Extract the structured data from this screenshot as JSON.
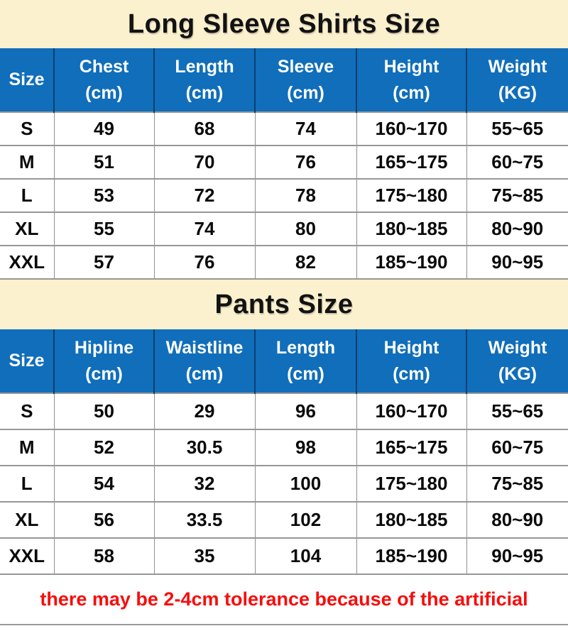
{
  "colors": {
    "banner_bg": "#fcf1cf",
    "header_bg": "#106ebb",
    "header_divider": "#0d4070",
    "cell_border": "#979797",
    "note_red": "#f70d0d",
    "text_black": "#0a0a0a"
  },
  "footer": {
    "note": "there may be 2-4cm tolerance because of the artificial"
  },
  "chart_data": [
    {
      "type": "table",
      "title": "Long Sleeve Shirts Size",
      "columns": [
        {
          "label": "Size",
          "unit": ""
        },
        {
          "label": "Chest",
          "unit": "(cm)"
        },
        {
          "label": "Length",
          "unit": "(cm)"
        },
        {
          "label": "Sleeve",
          "unit": "(cm)"
        },
        {
          "label": "Height",
          "unit": "(cm)"
        },
        {
          "label": "Weight",
          "unit": "(KG)"
        }
      ],
      "rows": [
        [
          "S",
          "49",
          "68",
          "74",
          "160~170",
          "55~65"
        ],
        [
          "M",
          "51",
          "70",
          "76",
          "165~175",
          "60~75"
        ],
        [
          "L",
          "53",
          "72",
          "78",
          "175~180",
          "75~85"
        ],
        [
          "XL",
          "55",
          "74",
          "80",
          "180~185",
          "80~90"
        ],
        [
          "XXL",
          "57",
          "76",
          "82",
          "185~190",
          "90~95"
        ]
      ]
    },
    {
      "type": "table",
      "title": "Pants Size",
      "columns": [
        {
          "label": "Size",
          "unit": ""
        },
        {
          "label": "Hipline",
          "unit": "(cm)"
        },
        {
          "label": "Waistline",
          "unit": "(cm)"
        },
        {
          "label": "Length",
          "unit": "(cm)"
        },
        {
          "label": "Height",
          "unit": "(cm)"
        },
        {
          "label": "Weight",
          "unit": "(KG)"
        }
      ],
      "rows": [
        [
          "S",
          "50",
          "29",
          "96",
          "160~170",
          "55~65"
        ],
        [
          "M",
          "52",
          "30.5",
          "98",
          "165~175",
          "60~75"
        ],
        [
          "L",
          "54",
          "32",
          "100",
          "175~180",
          "75~85"
        ],
        [
          "XL",
          "56",
          "33.5",
          "102",
          "180~185",
          "80~90"
        ],
        [
          "XXL",
          "58",
          "35",
          "104",
          "185~190",
          "90~95"
        ]
      ]
    }
  ]
}
